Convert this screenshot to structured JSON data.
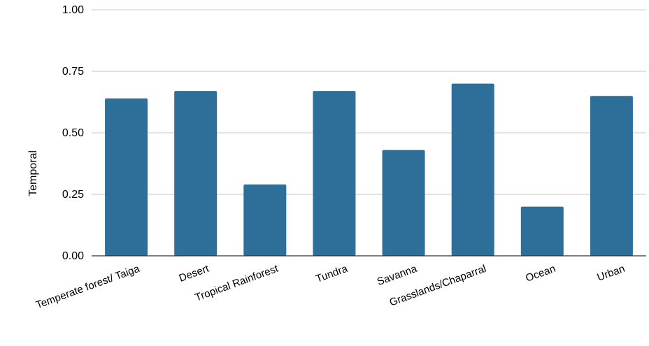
{
  "chart_data": {
    "type": "bar",
    "categories": [
      "Temperate forest/ Taiga",
      "Desert",
      "Tropical Rainforest",
      "Tundra",
      "Savanna",
      "Grasslands/Chaparral",
      "Ocean",
      "Urban"
    ],
    "values": [
      0.64,
      0.67,
      0.29,
      0.67,
      0.43,
      0.7,
      0.2,
      0.65
    ],
    "xlabel": "",
    "ylabel": "Temporal",
    "ylim": [
      0,
      1
    ],
    "yticks": [
      "0.00",
      "0.25",
      "0.50",
      "0.75",
      "1.00"
    ],
    "grid": true,
    "legend": "none",
    "bar_color": "#2e6f9a"
  }
}
